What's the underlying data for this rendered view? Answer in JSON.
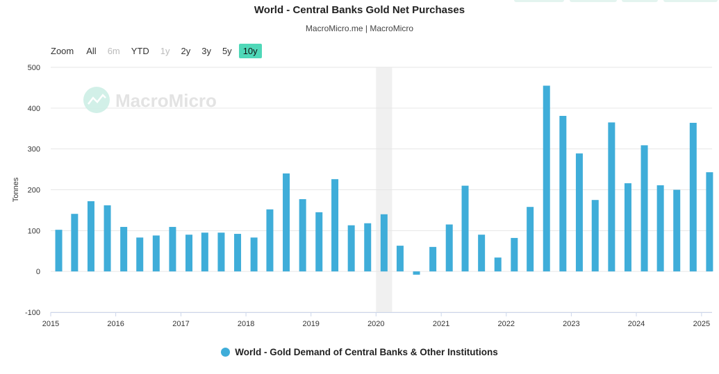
{
  "header": {
    "title": "World - Central Banks Gold Net Purchases",
    "subtitle": "MacroMicro.me | MacroMicro"
  },
  "watermark": "MacroMicro",
  "zoom": {
    "label": "Zoom",
    "buttons": [
      {
        "label": "All",
        "state": "normal"
      },
      {
        "label": "6m",
        "state": "disabled"
      },
      {
        "label": "YTD",
        "state": "normal"
      },
      {
        "label": "1y",
        "state": "disabled"
      },
      {
        "label": "2y",
        "state": "normal"
      },
      {
        "label": "3y",
        "state": "normal"
      },
      {
        "label": "5y",
        "state": "normal"
      },
      {
        "label": "10y",
        "state": "active"
      }
    ]
  },
  "colors": {
    "bar": "#3fadd9",
    "active_button": "#4fd8b8",
    "highlight_band": "#e8e8e8"
  },
  "chart_data": {
    "type": "bar",
    "ylabel": "Tonnes",
    "ylim": [
      -100,
      500
    ],
    "yticks": [
      -100,
      0,
      100,
      200,
      300,
      400,
      500
    ],
    "xlim": [
      "2015-01-01",
      "2025-03-01"
    ],
    "xticks": [
      "2015",
      "2016",
      "2017",
      "2018",
      "2019",
      "2020",
      "2021",
      "2022",
      "2023",
      "2024",
      "2025"
    ],
    "grid": true,
    "shaded_period": [
      "2020-01-01",
      "2020-03-31"
    ],
    "legend_position": "bottom-center",
    "series": [
      {
        "name": "World - Gold Demand of Central Banks & Other Institutions",
        "x": [
          "2015-Q1",
          "2015-Q2",
          "2015-Q3",
          "2015-Q4",
          "2016-Q1",
          "2016-Q2",
          "2016-Q3",
          "2016-Q4",
          "2017-Q1",
          "2017-Q2",
          "2017-Q3",
          "2017-Q4",
          "2018-Q1",
          "2018-Q2",
          "2018-Q3",
          "2018-Q4",
          "2019-Q1",
          "2019-Q2",
          "2019-Q3",
          "2019-Q4",
          "2020-Q1",
          "2020-Q2",
          "2020-Q3",
          "2020-Q4",
          "2021-Q1",
          "2021-Q2",
          "2021-Q3",
          "2021-Q4",
          "2022-Q1",
          "2022-Q2",
          "2022-Q3",
          "2022-Q4",
          "2023-Q1",
          "2023-Q2",
          "2023-Q3",
          "2023-Q4",
          "2024-Q1",
          "2024-Q2",
          "2024-Q3",
          "2024-Q4",
          "2025-Q1"
        ],
        "values": [
          102,
          141,
          172,
          162,
          109,
          83,
          88,
          109,
          90,
          95,
          95,
          92,
          83,
          152,
          240,
          177,
          145,
          226,
          113,
          118,
          140,
          63,
          -8,
          60,
          115,
          210,
          90,
          34,
          82,
          158,
          455,
          381,
          289,
          175,
          365,
          216,
          309,
          211,
          200,
          364,
          243
        ]
      }
    ]
  }
}
